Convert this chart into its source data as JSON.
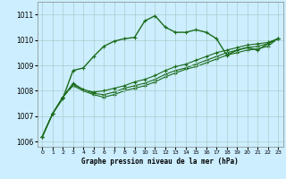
{
  "xlabel": "Graphe pression niveau de la mer (hPa)",
  "bg_color": "#cceeff",
  "grid_color": "#aacccc",
  "line_color": "#1a6b1a",
  "xlim": [
    -0.5,
    23.5
  ],
  "ylim": [
    1005.8,
    1011.5
  ],
  "yticks": [
    1006,
    1007,
    1008,
    1009,
    1010,
    1011
  ],
  "xticks": [
    0,
    1,
    2,
    3,
    4,
    5,
    6,
    7,
    8,
    9,
    10,
    11,
    12,
    13,
    14,
    15,
    16,
    17,
    18,
    19,
    20,
    21,
    22,
    23
  ],
  "series": [
    [
      1006.2,
      1007.1,
      1007.7,
      1008.8,
      1008.9,
      1009.35,
      1009.75,
      1009.95,
      1010.05,
      1010.1,
      1010.75,
      1010.95,
      1010.5,
      1010.3,
      1010.3,
      1010.4,
      1010.3,
      1010.05,
      1009.4,
      1009.6,
      1009.7,
      1009.6,
      1009.85,
      1010.05
    ],
    [
      1006.2,
      1007.1,
      1007.75,
      1008.3,
      1008.05,
      1007.95,
      1008.0,
      1008.1,
      1008.2,
      1008.35,
      1008.45,
      1008.6,
      1008.8,
      1008.95,
      1009.05,
      1009.2,
      1009.35,
      1009.5,
      1009.6,
      1009.7,
      1009.8,
      1009.85,
      1009.9,
      1010.05
    ],
    [
      1006.2,
      1007.1,
      1007.75,
      1008.25,
      1008.05,
      1007.9,
      1007.85,
      1007.95,
      1008.1,
      1008.2,
      1008.3,
      1008.45,
      1008.65,
      1008.8,
      1008.9,
      1009.05,
      1009.2,
      1009.35,
      1009.5,
      1009.6,
      1009.7,
      1009.75,
      1009.85,
      1010.05
    ],
    [
      1006.2,
      1007.1,
      1007.75,
      1008.2,
      1008.0,
      1007.85,
      1007.75,
      1007.85,
      1008.0,
      1008.1,
      1008.2,
      1008.35,
      1008.55,
      1008.7,
      1008.85,
      1008.95,
      1009.1,
      1009.25,
      1009.4,
      1009.5,
      1009.6,
      1009.65,
      1009.75,
      1010.05
    ]
  ]
}
